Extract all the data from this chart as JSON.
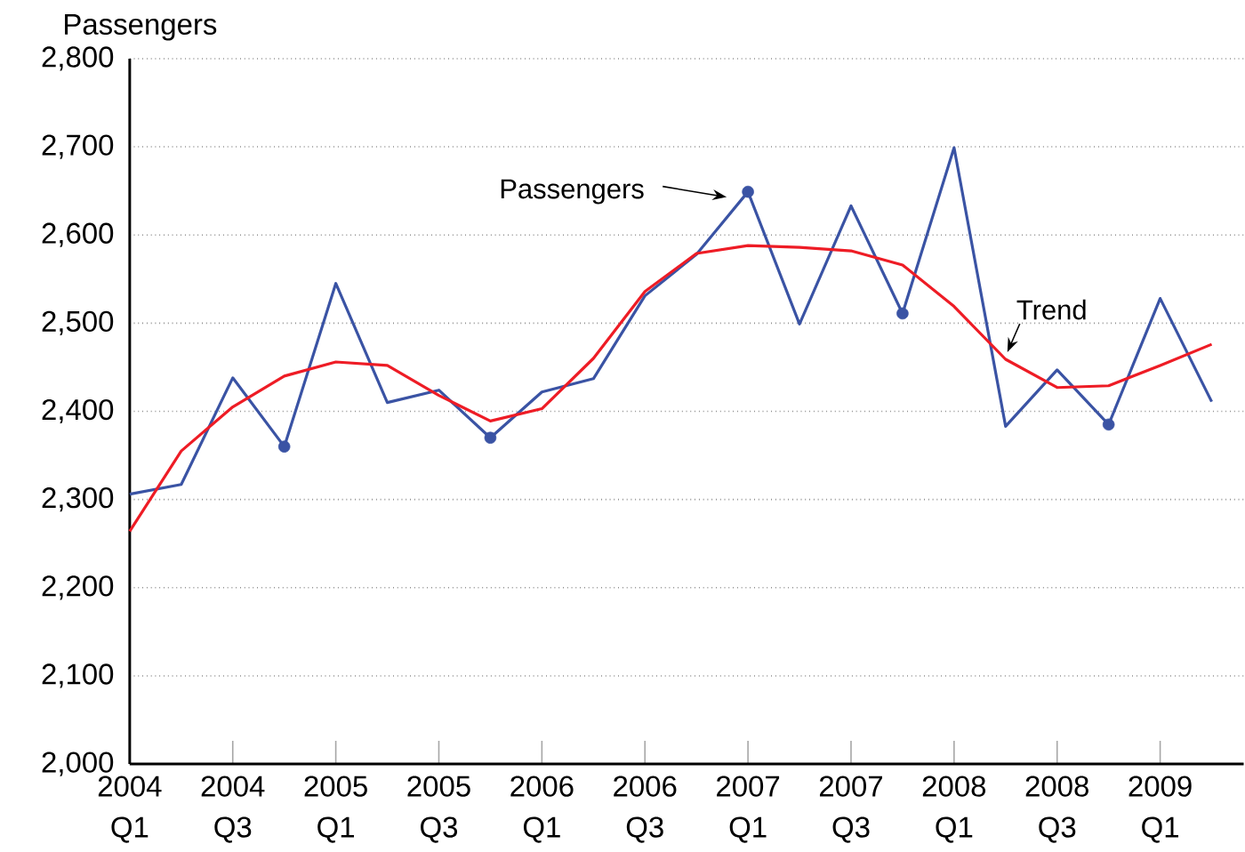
{
  "chart_data": {
    "type": "line",
    "ylabel": "Passengers",
    "categories": [
      "2004 Q1",
      null,
      "2004 Q3",
      null,
      "2005 Q1",
      null,
      "2005 Q3",
      null,
      "2006 Q1",
      null,
      "2006 Q3",
      null,
      "2007 Q1",
      null,
      "2007 Q3",
      null,
      "2008 Q1",
      null,
      "2008 Q3",
      null,
      "2009 Q1",
      null
    ],
    "series": [
      {
        "name": "Passengers",
        "color": "#3a53a4",
        "values": [
          2306,
          2317,
          2438,
          2360,
          2545,
          2410,
          2424,
          2370,
          2422,
          2437,
          2531,
          2578,
          2649,
          2499,
          2633,
          2511,
          2699,
          2383,
          2447,
          2385,
          2528,
          2411
        ]
      },
      {
        "name": "Trend",
        "color": "#ee1c25",
        "values": [
          2264,
          2355,
          2405,
          2440,
          2456,
          2452,
          2418,
          2389,
          2403,
          2460,
          2536,
          2579,
          2588,
          2586,
          2582,
          2566,
          2519,
          2459,
          2427,
          2429,
          2452,
          2476
        ]
      },
      {
        "type": "scatter",
        "marker": "circle",
        "color": "#3a53a4",
        "values": [
          null,
          null,
          null,
          2360,
          null,
          null,
          null,
          2370,
          null,
          null,
          null,
          null,
          2649,
          null,
          null,
          2511,
          null,
          null,
          null,
          2385,
          null,
          null
        ]
      }
    ],
    "ylim": [
      2000,
      2800
    ],
    "yticks": [
      {
        "value": 2000,
        "label": "2,000"
      },
      {
        "value": 2100,
        "label": "2,100"
      },
      {
        "value": 2200,
        "label": "2,200"
      },
      {
        "value": 2300,
        "label": "2,300"
      },
      {
        "value": 2400,
        "label": "2,400"
      },
      {
        "value": 2500,
        "label": "2,500"
      },
      {
        "value": 2600,
        "label": "2,600"
      },
      {
        "value": 2700,
        "label": "2,700"
      },
      {
        "value": 2800,
        "label": "2,800"
      }
    ],
    "grid": "y",
    "line_style": "solid",
    "marker": "none"
  }
}
